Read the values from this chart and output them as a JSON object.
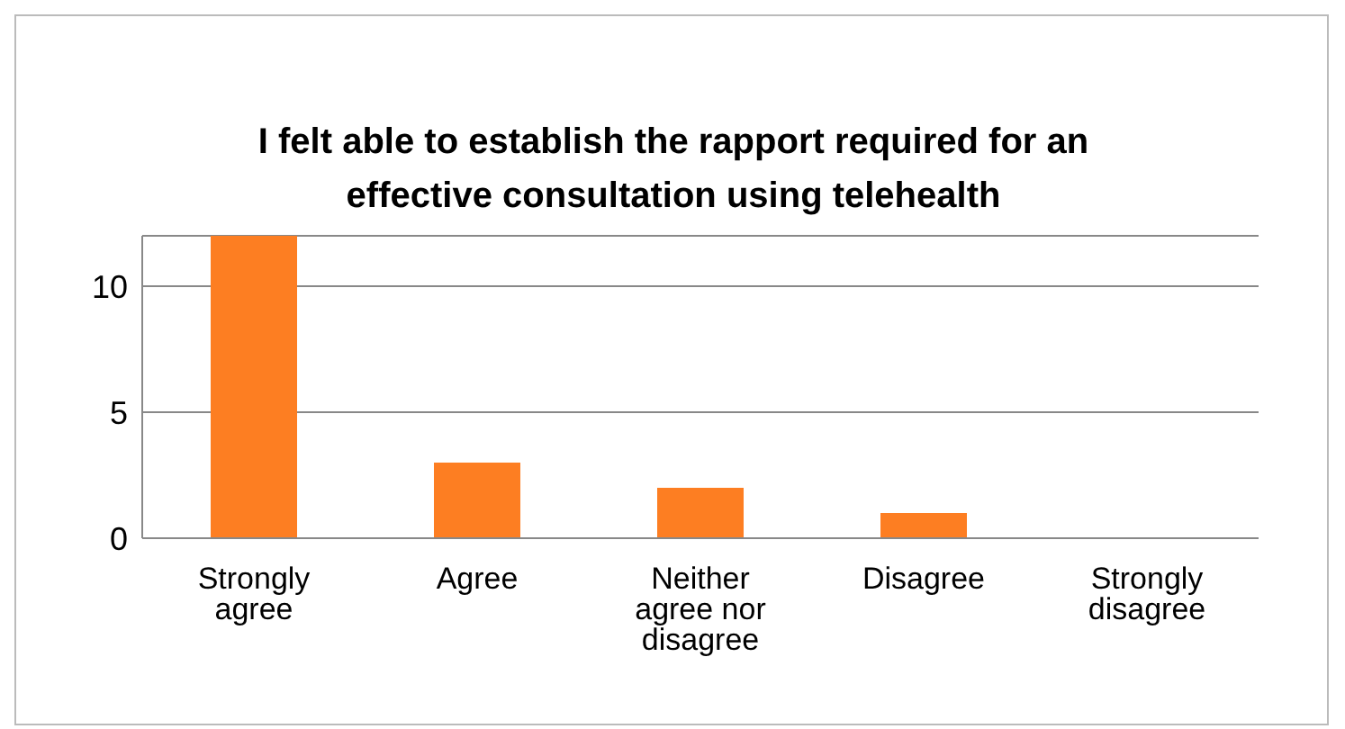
{
  "chart_data": {
    "type": "bar",
    "title": "I felt able to establish the rapport required for an effective consultation using telehealth",
    "categories": [
      "Strongly agree",
      "Agree",
      "Neither agree nor disagree",
      "Disagree",
      "Strongly disagree"
    ],
    "values": [
      12,
      3,
      2,
      1,
      0
    ],
    "color": "#fd7e22",
    "ylim": [
      0,
      12
    ],
    "yticks": [
      0,
      5,
      10
    ],
    "grid": "y",
    "legend": false
  }
}
